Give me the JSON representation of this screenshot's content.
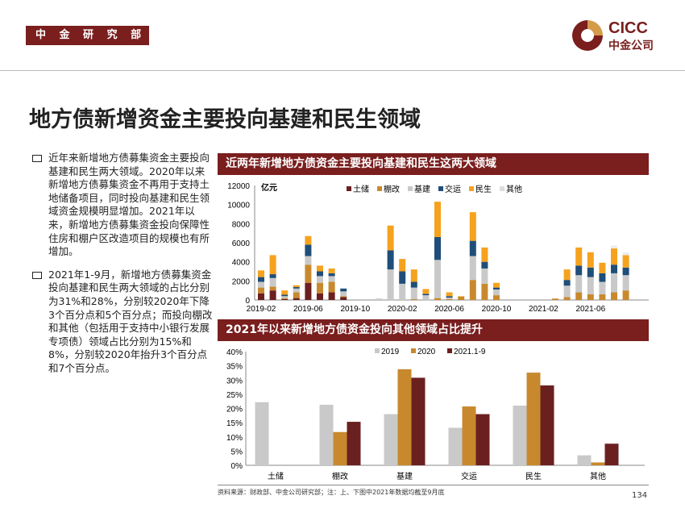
{
  "header": {
    "department": "中 金 研 究 部",
    "logo_en": "CICC",
    "logo_cn": "中金公司"
  },
  "title": "地方债新增资金主要投向基建和民生领域",
  "bullets": [
    "近年来新增地方债募集资金主要投向基建和民生两大领域。2020年以来新增地方债募集资金不再用于支持土地储备项目，同时投向基建和民生领域资金规模明显增加。2021年以来，新增地方债募集资金投向保障性住房和棚户区改造项目的规模也有所增加。",
    "2021年1-9月，新增地方债募集资金投向基建和民生两大领域的占比分别为31%和28%，分别较2020年下降3个百分点和5个百分点；而投向棚改和其他（包括用于支持中小银行发展专项债）领域占比分别为15%和8%，分别较2020年抬升3个百分点和7个百分点。"
  ],
  "panels": {
    "chart1_title": "近两年新增地方债资金主要投向基建和民生这两大领域",
    "chart2_title": "2021年以来新增地方债资金投向其他领域占比提升"
  },
  "footnote": "资料来源：财政部、中金公司研究部；注：上、下图中2021年数据均截至9月底",
  "page_number": "134",
  "chart_data": [
    {
      "type": "bar",
      "stacked": true,
      "title": "近两年新增地方债资金主要投向基建和民生这两大领域",
      "ylabel": "亿元",
      "ylim": [
        0,
        12000
      ],
      "yticks": [
        0,
        2000,
        4000,
        6000,
        8000,
        10000,
        12000
      ],
      "xtick_labels": [
        "2019-02",
        "2019-06",
        "2019-10",
        "2020-02",
        "2020-06",
        "2020-10",
        "2021-02",
        "2021-06"
      ],
      "categories": [
        "2019-02",
        "2019-03",
        "2019-04",
        "2019-05",
        "2019-06",
        "2019-07",
        "2019-08",
        "2019-09",
        "2019-10",
        "2019-11",
        "2019-12",
        "2020-01",
        "2020-02",
        "2020-03",
        "2020-04",
        "2020-05",
        "2020-06",
        "2020-07",
        "2020-08",
        "2020-09",
        "2020-10",
        "2020-11",
        "2020-12",
        "2021-01",
        "2021-02",
        "2021-03",
        "2021-04",
        "2021-05",
        "2021-06",
        "2021-07",
        "2021-08",
        "2021-09"
      ],
      "series": [
        {
          "name": "土储",
          "color": "#6b1f1f",
          "values": [
            700,
            1000,
            100,
            200,
            1800,
            700,
            800,
            300,
            0,
            0,
            0,
            0,
            0,
            0,
            0,
            0,
            0,
            0,
            0,
            0,
            0,
            0,
            0,
            0,
            0,
            0,
            0,
            0,
            0,
            0,
            0,
            0
          ]
        },
        {
          "name": "棚改",
          "color": "#c8892e",
          "values": [
            600,
            400,
            100,
            600,
            1900,
            1100,
            1100,
            100,
            0,
            0,
            0,
            0,
            0,
            100,
            0,
            200,
            100,
            350,
            2100,
            1700,
            500,
            0,
            0,
            0,
            0,
            150,
            300,
            800,
            600,
            600,
            800,
            1000
          ]
        },
        {
          "name": "基建",
          "color": "#c9c9c9",
          "values": [
            600,
            900,
            200,
            400,
            900,
            700,
            600,
            500,
            0,
            0,
            150,
            3200,
            1700,
            1200,
            500,
            4000,
            150,
            0,
            2500,
            1600,
            600,
            0,
            0,
            0,
            0,
            0,
            1200,
            1800,
            1800,
            1300,
            2000,
            1600
          ]
        },
        {
          "name": "交运",
          "color": "#1f4e79",
          "values": [
            500,
            400,
            150,
            150,
            1200,
            500,
            300,
            300,
            0,
            0,
            0,
            2000,
            1300,
            600,
            150,
            2400,
            150,
            0,
            1600,
            700,
            200,
            0,
            0,
            0,
            0,
            0,
            600,
            1000,
            1000,
            900,
            900,
            800
          ]
        },
        {
          "name": "民生",
          "color": "#f5a21e",
          "values": [
            700,
            2000,
            450,
            200,
            900,
            600,
            500,
            0,
            0,
            0,
            0,
            2600,
            1300,
            1300,
            500,
            3700,
            400,
            50,
            3000,
            1500,
            500,
            0,
            0,
            0,
            0,
            0,
            1100,
            1900,
            1600,
            1100,
            1700,
            1300
          ]
        },
        {
          "name": "其他",
          "color": "#ececec",
          "values": [
            0,
            0,
            0,
            0,
            0,
            0,
            0,
            0,
            0,
            0,
            0,
            0,
            0,
            0,
            0,
            0,
            0,
            0,
            0,
            0,
            0,
            0,
            0,
            0,
            0,
            0,
            0,
            0,
            0,
            0,
            300,
            300
          ]
        }
      ],
      "legend": "top"
    },
    {
      "type": "bar",
      "title": "2021年以来新增地方债资金投向其他领域占比提升",
      "ylim": [
        0,
        40
      ],
      "yticks": [
        "0%",
        "5%",
        "10%",
        "15%",
        "20%",
        "25%",
        "30%",
        "35%",
        "40%"
      ],
      "categories": [
        "土储",
        "棚改",
        "基建",
        "交运",
        "民生",
        "其他"
      ],
      "series": [
        {
          "name": "2019",
          "color": "#c9c9c9",
          "values": [
            22.2,
            21.3,
            18.0,
            13.2,
            21.0,
            3.5
          ]
        },
        {
          "name": "2020",
          "color": "#c8892e",
          "values": [
            0,
            11.7,
            33.8,
            20.7,
            32.6,
            1.0
          ]
        },
        {
          "name": "2021.1-9",
          "color": "#6b2020",
          "values": [
            0,
            15.3,
            30.8,
            18.0,
            28.1,
            7.6
          ]
        }
      ],
      "legend": "top"
    }
  ]
}
